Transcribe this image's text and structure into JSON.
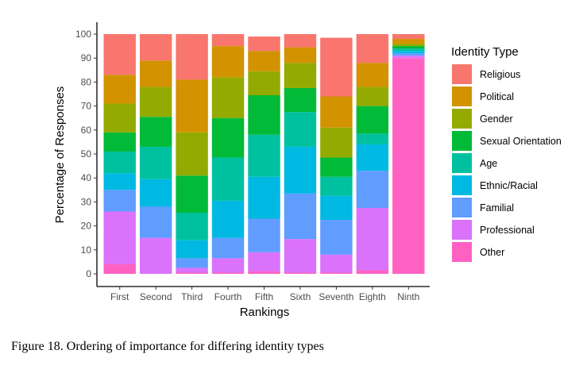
{
  "caption": "Figure 18. Ordering of importance for differing identity types",
  "chart_data": {
    "type": "bar",
    "stacked": true,
    "xlabel": "Rankings",
    "ylabel": "Percentage of Responses",
    "ylim": [
      0,
      100
    ],
    "yticks": [
      0,
      10,
      20,
      30,
      40,
      50,
      60,
      70,
      80,
      90,
      100
    ],
    "grid": false,
    "legend_title": "Identity Type",
    "legend_position": "right",
    "categories": [
      "First",
      "Second",
      "Third",
      "Fourth",
      "Fifth",
      "Sixth",
      "Seventh",
      "Eighth",
      "Ninth"
    ],
    "series": [
      {
        "name": "Religious",
        "color": "#F8766D",
        "values": [
          17,
          11,
          19,
          5,
          6,
          5.5,
          24.5,
          12,
          2
        ]
      },
      {
        "name": "Political",
        "color": "#D39200",
        "values": [
          12,
          11,
          22,
          13,
          8.5,
          6.5,
          13,
          10,
          2
        ]
      },
      {
        "name": "Gender",
        "color": "#93AA00",
        "values": [
          12,
          12.5,
          18,
          17,
          10,
          10.5,
          12.5,
          8,
          1
        ]
      },
      {
        "name": "Sexual Orientation",
        "color": "#00BA38",
        "values": [
          8,
          12.5,
          15.5,
          16.5,
          16.5,
          10,
          8,
          11.5,
          1
        ]
      },
      {
        "name": "Age",
        "color": "#00C19F",
        "values": [
          9,
          13.5,
          11.5,
          18,
          17.5,
          14.5,
          8,
          4.5,
          1
        ]
      },
      {
        "name": "Ethnic/Racial",
        "color": "#00B9E3",
        "values": [
          7,
          11.5,
          7.5,
          15.5,
          17.5,
          19.5,
          10,
          11,
          1
        ]
      },
      {
        "name": "Familial",
        "color": "#619CFF",
        "values": [
          9,
          13,
          4,
          8.5,
          14,
          19,
          14.5,
          15.5,
          1
        ]
      },
      {
        "name": "Professional",
        "color": "#DB72FB",
        "values": [
          22,
          15,
          2,
          6,
          8,
          14,
          7.5,
          26,
          1
        ]
      },
      {
        "name": "Other",
        "color": "#FF61C3",
        "values": [
          4,
          0,
          0.5,
          0.5,
          1,
          0.5,
          0.5,
          1.5,
          90
        ]
      }
    ]
  }
}
